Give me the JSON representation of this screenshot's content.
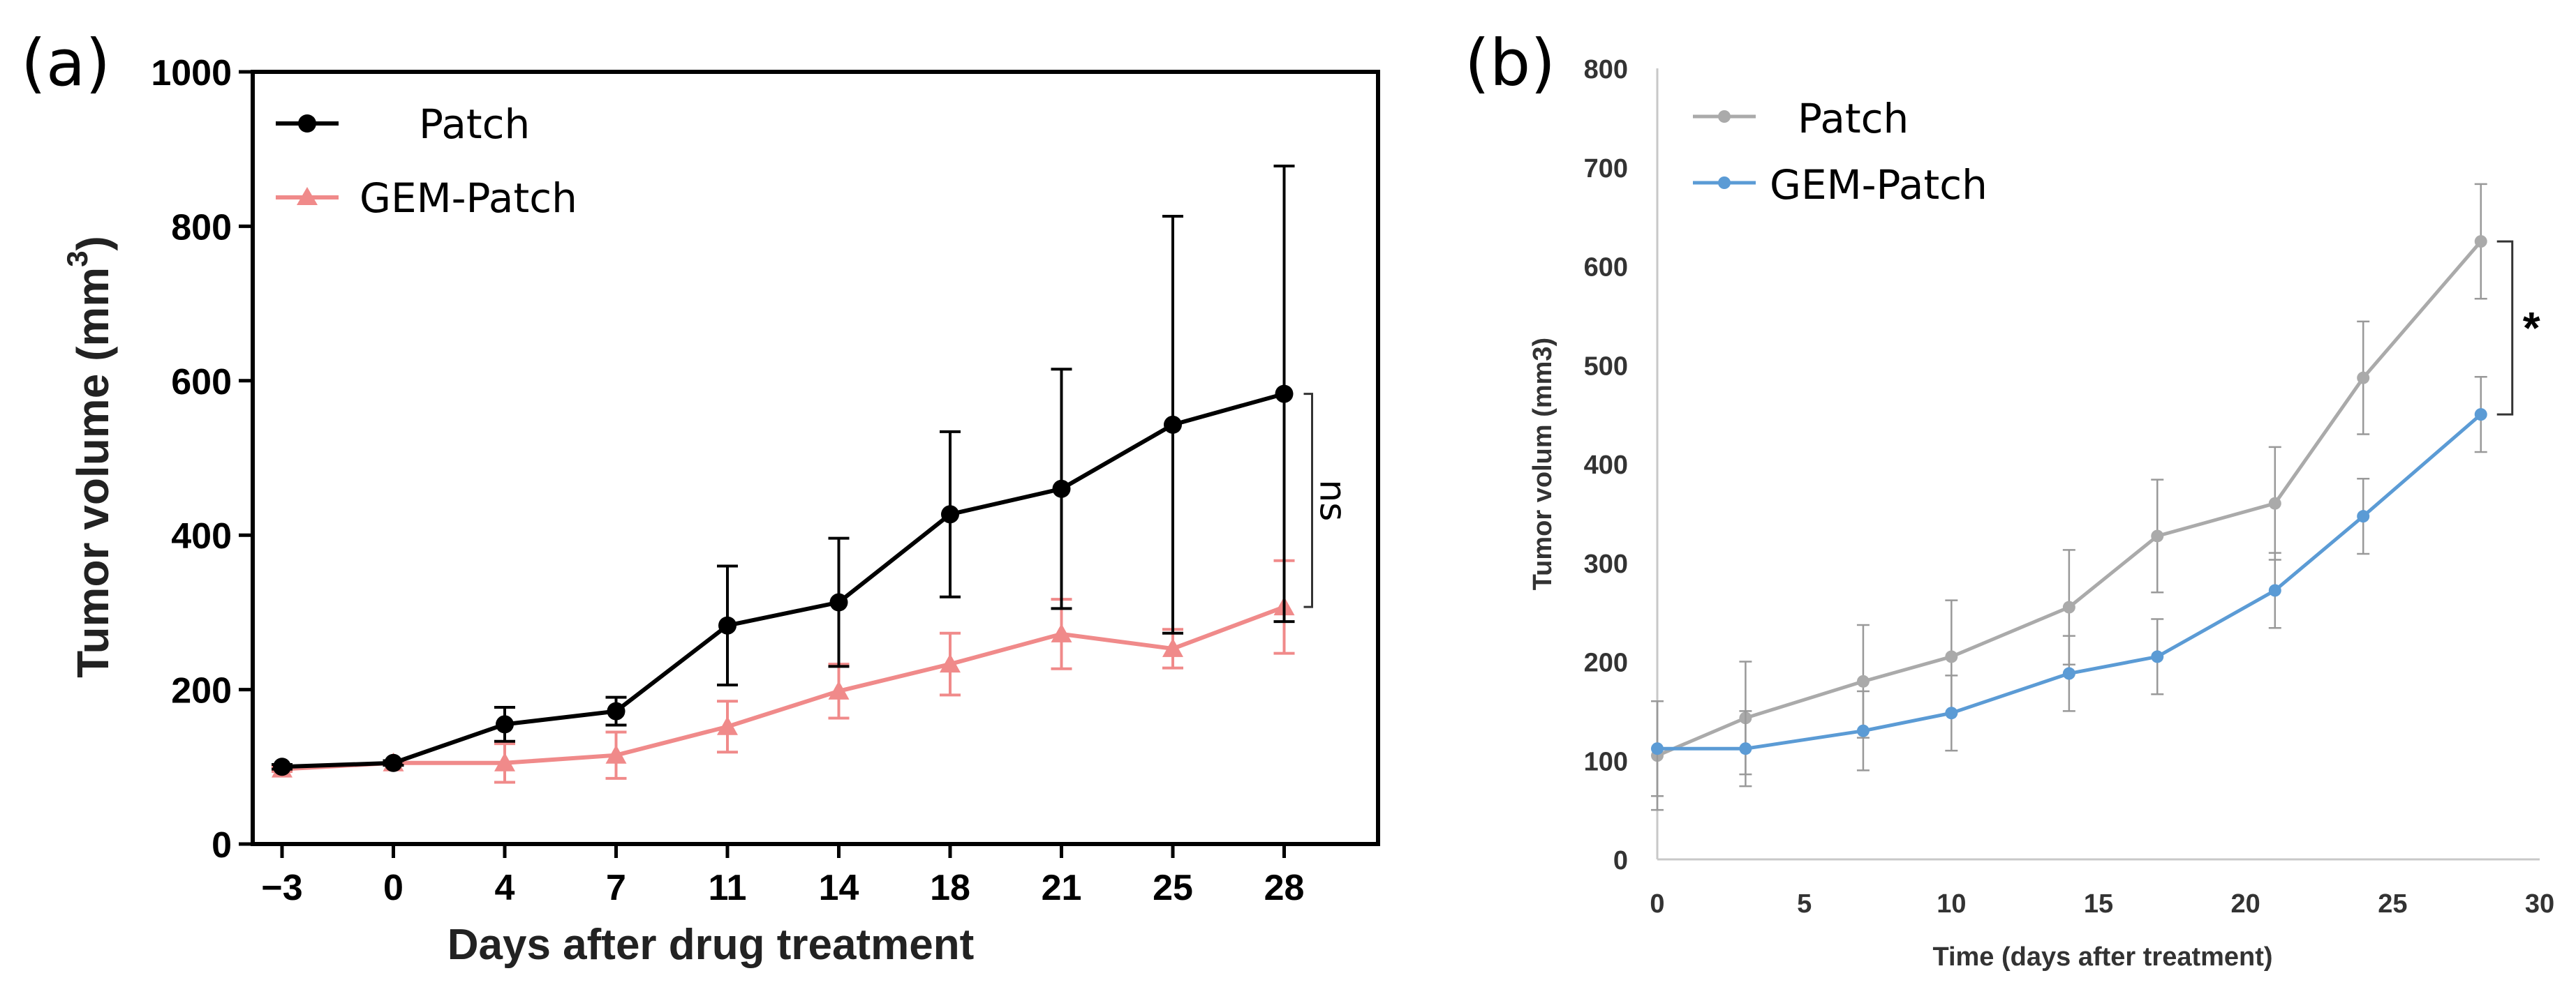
{
  "chart_data": [
    {
      "panel_label": "(a)",
      "type": "line",
      "title": "",
      "xlabel": "Days after drug treatment",
      "ylabel": "Tumor volume (mm",
      "ylabel_sup": "3",
      "ylabel_close": ")",
      "categories": [
        "−3",
        "0",
        "4",
        "7",
        "11",
        "14",
        "18",
        "21",
        "25",
        "28"
      ],
      "ylim": [
        0,
        1000
      ],
      "yticks": [
        0,
        200,
        400,
        600,
        800,
        1000
      ],
      "grid": false,
      "legend": "top-left",
      "series": [
        {
          "name": "Patch",
          "color": "#000000",
          "marker": "circle",
          "values": [
            100,
            105,
            155,
            172,
            283,
            313,
            427,
            460,
            543,
            583
          ],
          "errors": [
            3,
            3,
            22,
            18,
            77,
            83,
            107,
            155,
            270,
            295
          ]
        },
        {
          "name": "GEM-Patch",
          "color": "#f08a8a",
          "marker": "triangle",
          "values": [
            97,
            105,
            105,
            115,
            152,
            198,
            233,
            272,
            253,
            307
          ],
          "errors": [
            3,
            3,
            25,
            30,
            33,
            35,
            40,
            45,
            25,
            60
          ]
        }
      ],
      "annotation": "ns"
    },
    {
      "panel_label": "(b)",
      "type": "line",
      "title": "",
      "xlabel": "Time (days after treatment)",
      "ylabel": "Tumor volum (mm3)",
      "xlim": [
        0,
        30
      ],
      "xticks": [
        0,
        5,
        10,
        15,
        20,
        25,
        30
      ],
      "ylim": [
        0,
        800
      ],
      "yticks": [
        0,
        100,
        200,
        300,
        400,
        500,
        600,
        700,
        800
      ],
      "grid": false,
      "legend": "top-left",
      "series": [
        {
          "name": "Patch",
          "color": "#aaaaaa",
          "x": [
            0,
            3,
            7,
            10,
            14,
            17,
            21,
            24,
            28
          ],
          "values": [
            105,
            143,
            180,
            205,
            255,
            327,
            360,
            487,
            625
          ],
          "errors": [
            55,
            57,
            57,
            57,
            58,
            57,
            57,
            57,
            58
          ]
        },
        {
          "name": "GEM-Patch",
          "color": "#5b9bd5",
          "x": [
            0,
            3,
            7,
            10,
            14,
            17,
            21,
            24,
            28
          ],
          "values": [
            112,
            112,
            130,
            148,
            188,
            205,
            272,
            347,
            450
          ],
          "errors": [
            48,
            38,
            40,
            38,
            38,
            38,
            38,
            38,
            38
          ]
        }
      ],
      "annotation": "*"
    }
  ]
}
